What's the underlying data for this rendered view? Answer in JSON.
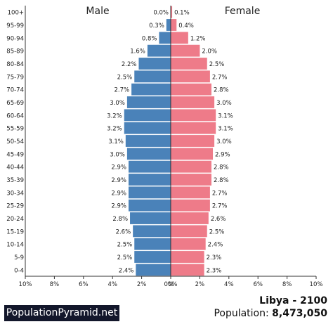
{
  "chart_data": {
    "type": "bar",
    "orientation": "horizontal-pyramid",
    "categories": [
      "0-4",
      "5-9",
      "10-14",
      "15-19",
      "20-24",
      "25-29",
      "30-34",
      "35-39",
      "40-44",
      "45-49",
      "50-54",
      "55-59",
      "60-64",
      "65-69",
      "70-74",
      "75-79",
      "80-84",
      "85-89",
      "90-94",
      "95-99",
      "100+"
    ],
    "series": [
      {
        "name": "Male",
        "color": "#4a82b9",
        "values": [
          2.4,
          2.5,
          2.5,
          2.6,
          2.8,
          2.9,
          2.9,
          2.9,
          2.9,
          3.0,
          3.1,
          3.2,
          3.2,
          3.0,
          2.7,
          2.5,
          2.2,
          1.6,
          0.8,
          0.3,
          0.0
        ],
        "labels": [
          "2.4%",
          "2.5%",
          "2.5%",
          "2.6%",
          "2.8%",
          "2.9%",
          "2.9%",
          "2.9%",
          "2.9%",
          "3.0%",
          "3.1%",
          "3.2%",
          "3.2%",
          "3.0%",
          "2.7%",
          "2.5%",
          "2.2%",
          "1.6%",
          "0.8%",
          "0.3%",
          "0.0%"
        ]
      },
      {
        "name": "Female",
        "color": "#ee7b89",
        "values": [
          2.3,
          2.3,
          2.4,
          2.5,
          2.6,
          2.7,
          2.7,
          2.8,
          2.8,
          2.9,
          3.0,
          3.1,
          3.1,
          3.0,
          2.8,
          2.7,
          2.5,
          2.0,
          1.2,
          0.4,
          0.1
        ],
        "labels": [
          "2.3%",
          "2.3%",
          "2.4%",
          "2.5%",
          "2.6%",
          "2.7%",
          "2.7%",
          "2.8%",
          "2.8%",
          "2.9%",
          "3.0%",
          "3.1%",
          "3.1%",
          "3.0%",
          "2.8%",
          "2.7%",
          "2.5%",
          "2.0%",
          "1.2%",
          "0.4%",
          "0.1%"
        ]
      }
    ],
    "xlim": [
      -10,
      10
    ],
    "xticks": [
      "10%",
      "8%",
      "6%",
      "4%",
      "2%",
      "0%",
      "0%",
      "2%",
      "4%",
      "6%",
      "8%",
      "10%"
    ],
    "legend": {
      "left": "Male",
      "right": "Female"
    }
  },
  "footer": {
    "brand": "PopulationPyramid.net",
    "country_year": "Libya - 2100",
    "population_label": "Population: ",
    "population_value": "8,473,050"
  }
}
